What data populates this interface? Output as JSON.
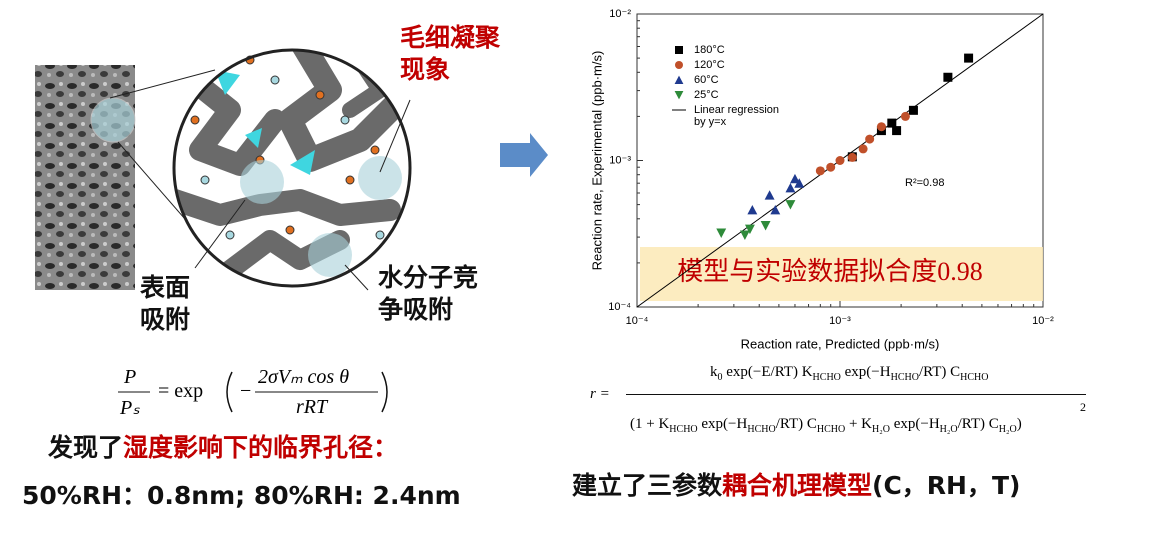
{
  "left": {
    "capillary_label": "毛细凝聚现象",
    "surface_label": "表面吸附",
    "competition_label": "水分子竞争吸附",
    "equation": {
      "lhs_num": "P",
      "lhs_den": "Pₛ",
      "eq": "= exp",
      "minus": "−",
      "num": "2σVₘ cos θ",
      "den": "rRT"
    },
    "finding": [
      "发现了",
      "湿度影响下的临界孔径："
    ],
    "result": "50%RH：0.8nm; 80%RH: 2.4nm"
  },
  "chart_data": {
    "type": "scatter",
    "log_x": true,
    "log_y": true,
    "xlabel": "Reaction rate, Predicted (ppb·m/s)",
    "ylabel": "Reaction rate, Experimental (ppb·m/s)",
    "xlim": [
      0.0001,
      0.01
    ],
    "ylim": [
      0.0001,
      0.01
    ],
    "xticks": [
      {
        "value": 0.0001,
        "label": "10⁻⁴"
      },
      {
        "value": 0.001,
        "label": "10⁻³"
      },
      {
        "value": 0.01,
        "label": "10⁻²"
      }
    ],
    "yticks": [
      {
        "value": 0.0001,
        "label": "10⁻⁴"
      },
      {
        "value": 0.001,
        "label": "10⁻³"
      },
      {
        "value": 0.01,
        "label": "10⁻²"
      }
    ],
    "series": [
      {
        "name": "180°C",
        "color": "#000000",
        "marker": "square",
        "x": [
          0.0043,
          0.0034,
          0.0023,
          0.0018,
          0.0016,
          0.0019,
          0.00115
        ],
        "y": [
          0.005,
          0.0037,
          0.0022,
          0.0018,
          0.0016,
          0.0016,
          0.00106
        ]
      },
      {
        "name": "120°C",
        "color": "#c0502a",
        "marker": "circle",
        "x": [
          0.0021,
          0.0016,
          0.0014,
          0.0013,
          0.00115,
          0.001,
          0.0009,
          0.0008
        ],
        "y": [
          0.002,
          0.0017,
          0.0014,
          0.0012,
          0.00105,
          0.001,
          0.0009,
          0.00085
        ]
      },
      {
        "name": "60°C",
        "color": "#1f3a8f",
        "marker": "triangle-up",
        "x": [
          0.00063,
          0.00057,
          0.00048,
          0.00037,
          0.00045,
          0.0006
        ],
        "y": [
          0.0007,
          0.00065,
          0.00046,
          0.00046,
          0.00058,
          0.00075
        ]
      },
      {
        "name": "25°C",
        "color": "#2e8b3a",
        "marker": "triangle-down",
        "x": [
          0.00026,
          0.00034,
          0.00043,
          0.00057,
          0.00036
        ],
        "y": [
          0.00032,
          0.00031,
          0.00036,
          0.0005,
          0.00034
        ]
      }
    ],
    "regression": {
      "name": "Linear regression by y=x",
      "color": "#000000"
    },
    "r2_label": "R²=0.98",
    "banner": "模型与实验数据拟合度0.98"
  },
  "right": {
    "equation": {
      "lhs": "r =",
      "numerator": [
        "k",
        "0",
        " exp(−E/RT) K",
        "HCHO",
        " exp(−H",
        "HCHO",
        "/RT) C",
        "HCHO"
      ],
      "denominator": [
        "(1 + K",
        "HCHO",
        " exp(−H",
        "HCHO",
        "/RT) C",
        "HCHO",
        " + K",
        "H₂O",
        " exp(−H",
        "H₂O",
        "/RT) C",
        "H₂O",
        ")"
      ],
      "power": "2"
    },
    "conclusion": [
      "建立了三参数",
      "耦合机理模型",
      "(C，RH，T)"
    ]
  }
}
